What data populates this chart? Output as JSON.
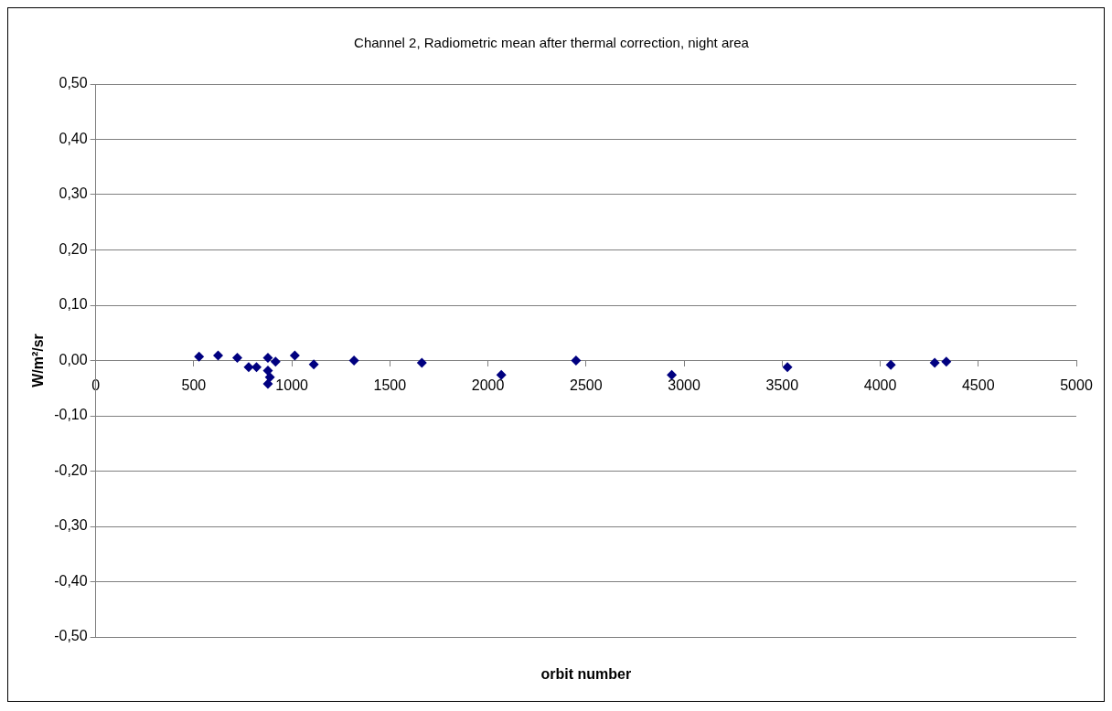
{
  "chart_data": {
    "type": "scatter",
    "title": "Channel 2, Radiometric mean after thermal correction, night area",
    "xlabel": "orbit number",
    "ylabel": "W/m²/sr",
    "x": [
      527,
      624,
      722,
      780,
      820,
      878,
      917,
      878,
      888,
      878,
      1015,
      1112,
      1317,
      1663,
      2068,
      2449,
      2937,
      3527,
      4054,
      4278,
      4337
    ],
    "series": [
      {
        "color": "#000080",
        "values": [
          0.007,
          0.009,
          0.005,
          -0.012,
          -0.012,
          0.005,
          -0.002,
          -0.018,
          -0.03,
          -0.042,
          0.009,
          -0.007,
          0.0,
          -0.004,
          -0.026,
          0.0,
          -0.026,
          -0.012,
          -0.008,
          -0.004,
          -0.002
        ]
      }
    ],
    "xlim": [
      0,
      5000
    ],
    "xticks": [
      0,
      500,
      1000,
      1500,
      2000,
      2500,
      3000,
      3500,
      4000,
      4500,
      5000
    ],
    "ylim": [
      -0.5,
      0.5
    ],
    "yticks": [
      {
        "value": -0.5,
        "label": "-0,50"
      },
      {
        "value": -0.4,
        "label": "-0,40"
      },
      {
        "value": -0.3,
        "label": "-0,30"
      },
      {
        "value": -0.2,
        "label": "-0,20"
      },
      {
        "value": -0.1,
        "label": "-0,10"
      },
      {
        "value": 0,
        "label": "0,00"
      },
      {
        "value": 0.1,
        "label": "0,10"
      },
      {
        "value": 0.2,
        "label": "0,20"
      },
      {
        "value": 0.3,
        "label": "0,30"
      },
      {
        "value": 0.4,
        "label": "0,40"
      },
      {
        "value": 0.5,
        "label": "0,50"
      }
    ],
    "grid": "y",
    "marker": "diamond"
  }
}
